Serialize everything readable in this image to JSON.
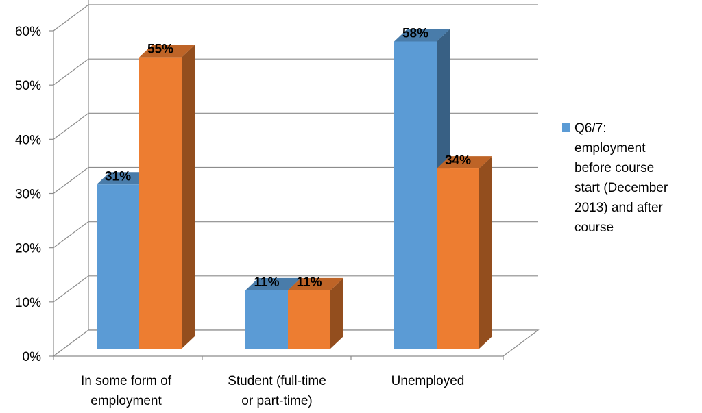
{
  "chart_data": {
    "type": "bar",
    "title": "",
    "xlabel": "",
    "ylabel": "",
    "ylim": [
      0,
      60
    ],
    "ytick_labels": [
      "0%",
      "10%",
      "20%",
      "30%",
      "40%",
      "50%",
      "60%"
    ],
    "yticks": [
      0,
      10,
      20,
      30,
      40,
      50,
      60
    ],
    "categories": [
      [
        "In some form of",
        "employment"
      ],
      [
        "Student (full-time",
        "or part-time)"
      ],
      [
        "Unemployed"
      ]
    ],
    "series": [
      {
        "values": [
          31,
          11,
          58
        ],
        "labels": [
          "31%",
          "11%",
          "58%"
        ],
        "color": "#5b9bd5"
      },
      {
        "values": [
          55,
          11,
          34
        ],
        "labels": [
          "55%",
          "11%",
          "34%"
        ],
        "color": "#ed7d31"
      }
    ],
    "legend": {
      "position": "right",
      "entries": [
        {
          "lines": [
            "Q6/7:",
            "employment",
            "before course",
            "start (December",
            "2013) and after",
            "course"
          ],
          "color": "#5b9bd5"
        }
      ]
    },
    "grid": true,
    "style": "3d-column"
  }
}
